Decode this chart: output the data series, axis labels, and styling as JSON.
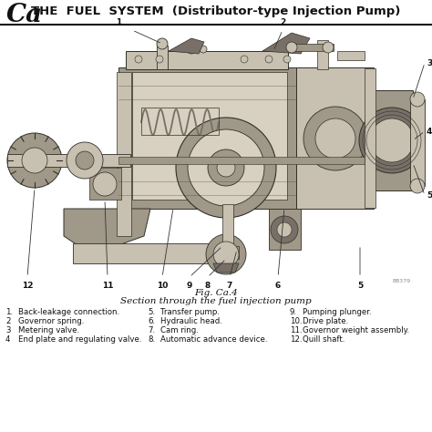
{
  "title_prefix": "Ca",
  "title_main": "THE  FUEL  SYSTEM  (Distributor-type Injection Pump)",
  "bg_color": "#ffffff",
  "diagram_bg": "#f5f2ec",
  "fig_caption": "Fig. Ca.4",
  "fig_subcaption": "Section through the fuel injection pump",
  "legend_cols": [
    [
      {
        "num": "1.",
        "text": "Back-leakage connection."
      },
      {
        "num": "2",
        "text": "Governor spring."
      },
      {
        "num": "3",
        "text": "Metering valve."
      },
      {
        "num": "4",
        "text": "End plate and regulating valve."
      }
    ],
    [
      {
        "num": "5.",
        "text": "Transfer pump."
      },
      {
        "num": "6.",
        "text": "Hydraulic head."
      },
      {
        "num": "7.",
        "text": "Cam ring."
      },
      {
        "num": "8.",
        "text": "Automatic advance device."
      }
    ],
    [
      {
        "num": "9.",
        "text": "Pumping plunger."
      },
      {
        "num": "10.",
        "text": "Drive plate."
      },
      {
        "num": "11.",
        "text": "Governor weight assembly."
      },
      {
        "num": "12.",
        "text": "Quill shaft."
      }
    ]
  ],
  "header_line_color": "#111111",
  "text_color": "#111111",
  "title_font_size": 9.5,
  "prefix_font_size": 20,
  "caption_font_size": 7.5,
  "legend_font_size": 6.2,
  "watermark": "B8379",
  "line_color": "#333333",
  "pump_gray1": "#c8c0b0",
  "pump_gray2": "#a09888",
  "pump_gray3": "#787068",
  "pump_gray4": "#d8d0c0",
  "pump_gray5": "#e8e0d0",
  "pump_dark": "#504840",
  "edge_color": "#303028"
}
